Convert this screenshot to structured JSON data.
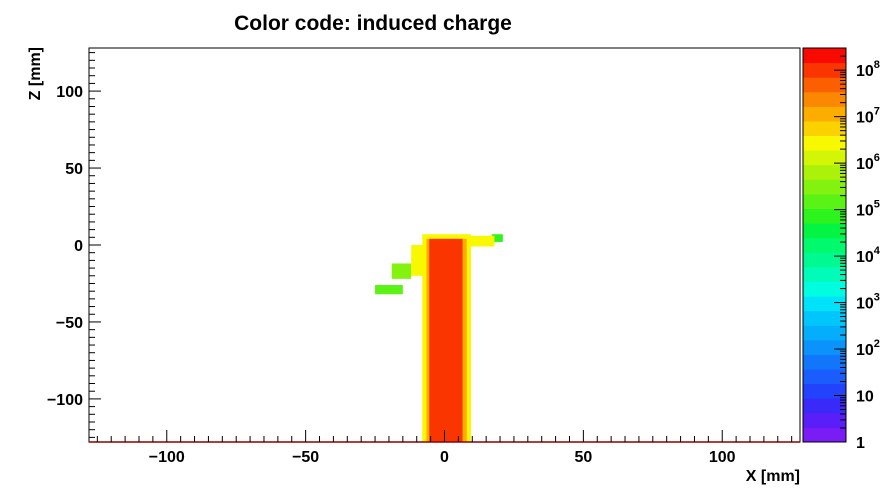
{
  "chart_data": {
    "type": "heatmap",
    "title": "Color code: induced charge",
    "xlabel": "X [mm]",
    "ylabel": "Z [mm]",
    "xlim": [
      -128,
      128
    ],
    "ylim": [
      -128,
      128
    ],
    "x_ticks": [
      -100,
      -50,
      0,
      50,
      100
    ],
    "x_tick_labels": [
      "−100",
      "−50",
      "0",
      "50",
      "100"
    ],
    "y_ticks": [
      -100,
      -50,
      0,
      50,
      100
    ],
    "y_tick_labels": [
      "−100",
      "−50",
      "0",
      "50",
      "100"
    ],
    "colorbar": {
      "scale": "log",
      "range": [
        1,
        300000000
      ],
      "ticks": [
        {
          "base": "1",
          "exp": ""
        },
        {
          "base": "10",
          "exp": ""
        },
        {
          "base": "10",
          "exp": "2"
        },
        {
          "base": "10",
          "exp": "3"
        },
        {
          "base": "10",
          "exp": "4"
        },
        {
          "base": "10",
          "exp": "5"
        },
        {
          "base": "10",
          "exp": "6"
        },
        {
          "base": "10",
          "exp": "7"
        },
        {
          "base": "10",
          "exp": "8"
        }
      ],
      "colors": [
        "#7a1cf5",
        "#5a1ef8",
        "#3a2afa",
        "#2342fb",
        "#1b5cfc",
        "#1276fb",
        "#0b92fb",
        "#05aefb",
        "#00c6fb",
        "#00e2f9",
        "#00fde0",
        "#00fcb8",
        "#00fa92",
        "#00fa6c",
        "#04f443",
        "#2cf41c",
        "#5af315",
        "#84f20f",
        "#abf10a",
        "#d3f506",
        "#f8f801",
        "#fbd200",
        "#fcad00",
        "#fc8700",
        "#fb5f00",
        "#fa3500",
        "#f90a00"
      ],
      "colors_note": "purple to red"
    },
    "regions": [
      {
        "x": [
          -5.5,
          6.5
        ],
        "z": [
          -128,
          4
        ],
        "value": 100000000
      },
      {
        "x": [
          -6.5,
          8
        ],
        "z": [
          -128,
          4
        ],
        "value": 10000000
      },
      {
        "x": [
          -8,
          9.5
        ],
        "z": [
          -128,
          7
        ],
        "value": 3000000
      },
      {
        "x": [
          -12,
          -3
        ],
        "z": [
          -20,
          0
        ],
        "value": 3000000
      },
      {
        "x": [
          6,
          18
        ],
        "z": [
          -1,
          6
        ],
        "value": 2000000
      },
      {
        "x": [
          -19,
          -12
        ],
        "z": [
          -22,
          -12
        ],
        "value": 300000
      },
      {
        "x": [
          -25,
          -15
        ],
        "z": [
          -32,
          -26
        ],
        "value": 200000
      },
      {
        "x": [
          17,
          21
        ],
        "z": [
          2,
          7
        ],
        "value": 100000
      }
    ]
  }
}
